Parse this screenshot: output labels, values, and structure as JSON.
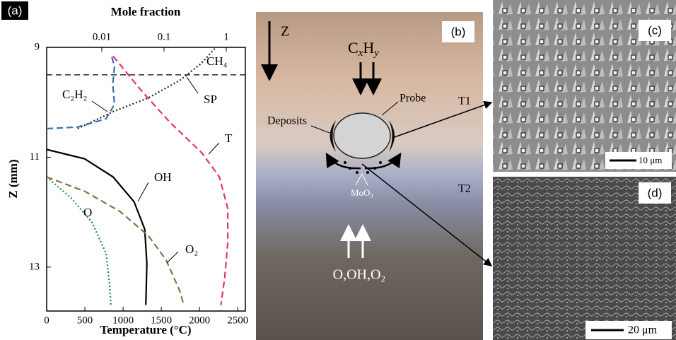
{
  "chart_data": {
    "type": "line",
    "panel_label": "(a)",
    "x_label": "Temperature (°C)",
    "x2_label": "Mole fraction",
    "y_label": "Z (mm)",
    "xlim": [
      0,
      2600
    ],
    "xticks": [
      0,
      500,
      1000,
      1500,
      2000,
      2500
    ],
    "x2lim": [
      0.0013,
      2.03
    ],
    "x2ticks": [
      0.01,
      0.1,
      1
    ],
    "x2_log": true,
    "ylim": [
      9,
      13.8
    ],
    "yticks": [
      9,
      11,
      13
    ],
    "y_inverted": true,
    "series": [
      {
        "name": "CH₄",
        "color": "#222222",
        "dash": "dotted",
        "axis": "x2",
        "x": [
          0.0041,
          0.0152,
          0.056,
          0.18,
          0.4,
          0.68
        ],
        "values": [
          10.48,
          10.17,
          9.92,
          9.6,
          9.29,
          9.0
        ]
      },
      {
        "name": "C₂H₂",
        "color": "#3a6fb5",
        "dash": "dashed",
        "axis": "x2",
        "x": [
          0.0013,
          0.0041,
          0.0117,
          0.016,
          0.015,
          0.016,
          0.0144
        ],
        "values": [
          10.48,
          10.45,
          10.3,
          10.04,
          9.67,
          9.35,
          9.16
        ]
      },
      {
        "name": "T",
        "color": "#e8336e",
        "dash": "dashed",
        "axis": "x",
        "x": [
          870,
          1240,
          1610,
          2030,
          2260,
          2370,
          2370,
          2330,
          2280
        ],
        "values": [
          9.16,
          9.79,
          10.36,
          10.92,
          11.36,
          11.93,
          12.56,
          13.19,
          13.69
        ]
      },
      {
        "name": "OH",
        "color": "#000000",
        "dash": "solid",
        "axis": "x2",
        "x": [
          0.0013,
          0.0053,
          0.0152,
          0.033,
          0.049,
          0.053,
          0.051
        ],
        "values": [
          10.86,
          11.03,
          11.36,
          11.81,
          12.31,
          12.94,
          13.69
        ]
      },
      {
        "name": "O₂",
        "color": "#8a7042",
        "dash": "dashed",
        "axis": "x2",
        "x": [
          0.0013,
          0.0053,
          0.0197,
          0.056,
          0.108,
          0.18,
          0.208
        ],
        "values": [
          11.36,
          11.62,
          11.99,
          12.43,
          12.87,
          13.44,
          13.69
        ]
      },
      {
        "name": "O",
        "color": "#1f8a3a",
        "dash": "dotted",
        "axis": "x2",
        "x": [
          0.0013,
          0.0032,
          0.0069,
          0.0117,
          0.0133,
          0.014
        ],
        "values": [
          11.36,
          11.74,
          12.18,
          12.75,
          13.31,
          13.69
        ]
      }
    ],
    "annotations": [
      {
        "text": "SP",
        "value": 9.5
      }
    ]
  },
  "panel_b": {
    "label": "(b)",
    "z_arrow": "Z",
    "reactant": [
      "C",
      "x",
      "H",
      "y"
    ],
    "probe": "Probe",
    "deposits": "Deposits",
    "t1": "T1",
    "t2": "T2",
    "oxide": "MoO₃",
    "oxidizers": "O,OH,O₂"
  },
  "panel_c": {
    "label": "(c)",
    "scale_bar": "10 μm"
  },
  "panel_d": {
    "label": "(d)",
    "scale_bar": "20 μm"
  }
}
